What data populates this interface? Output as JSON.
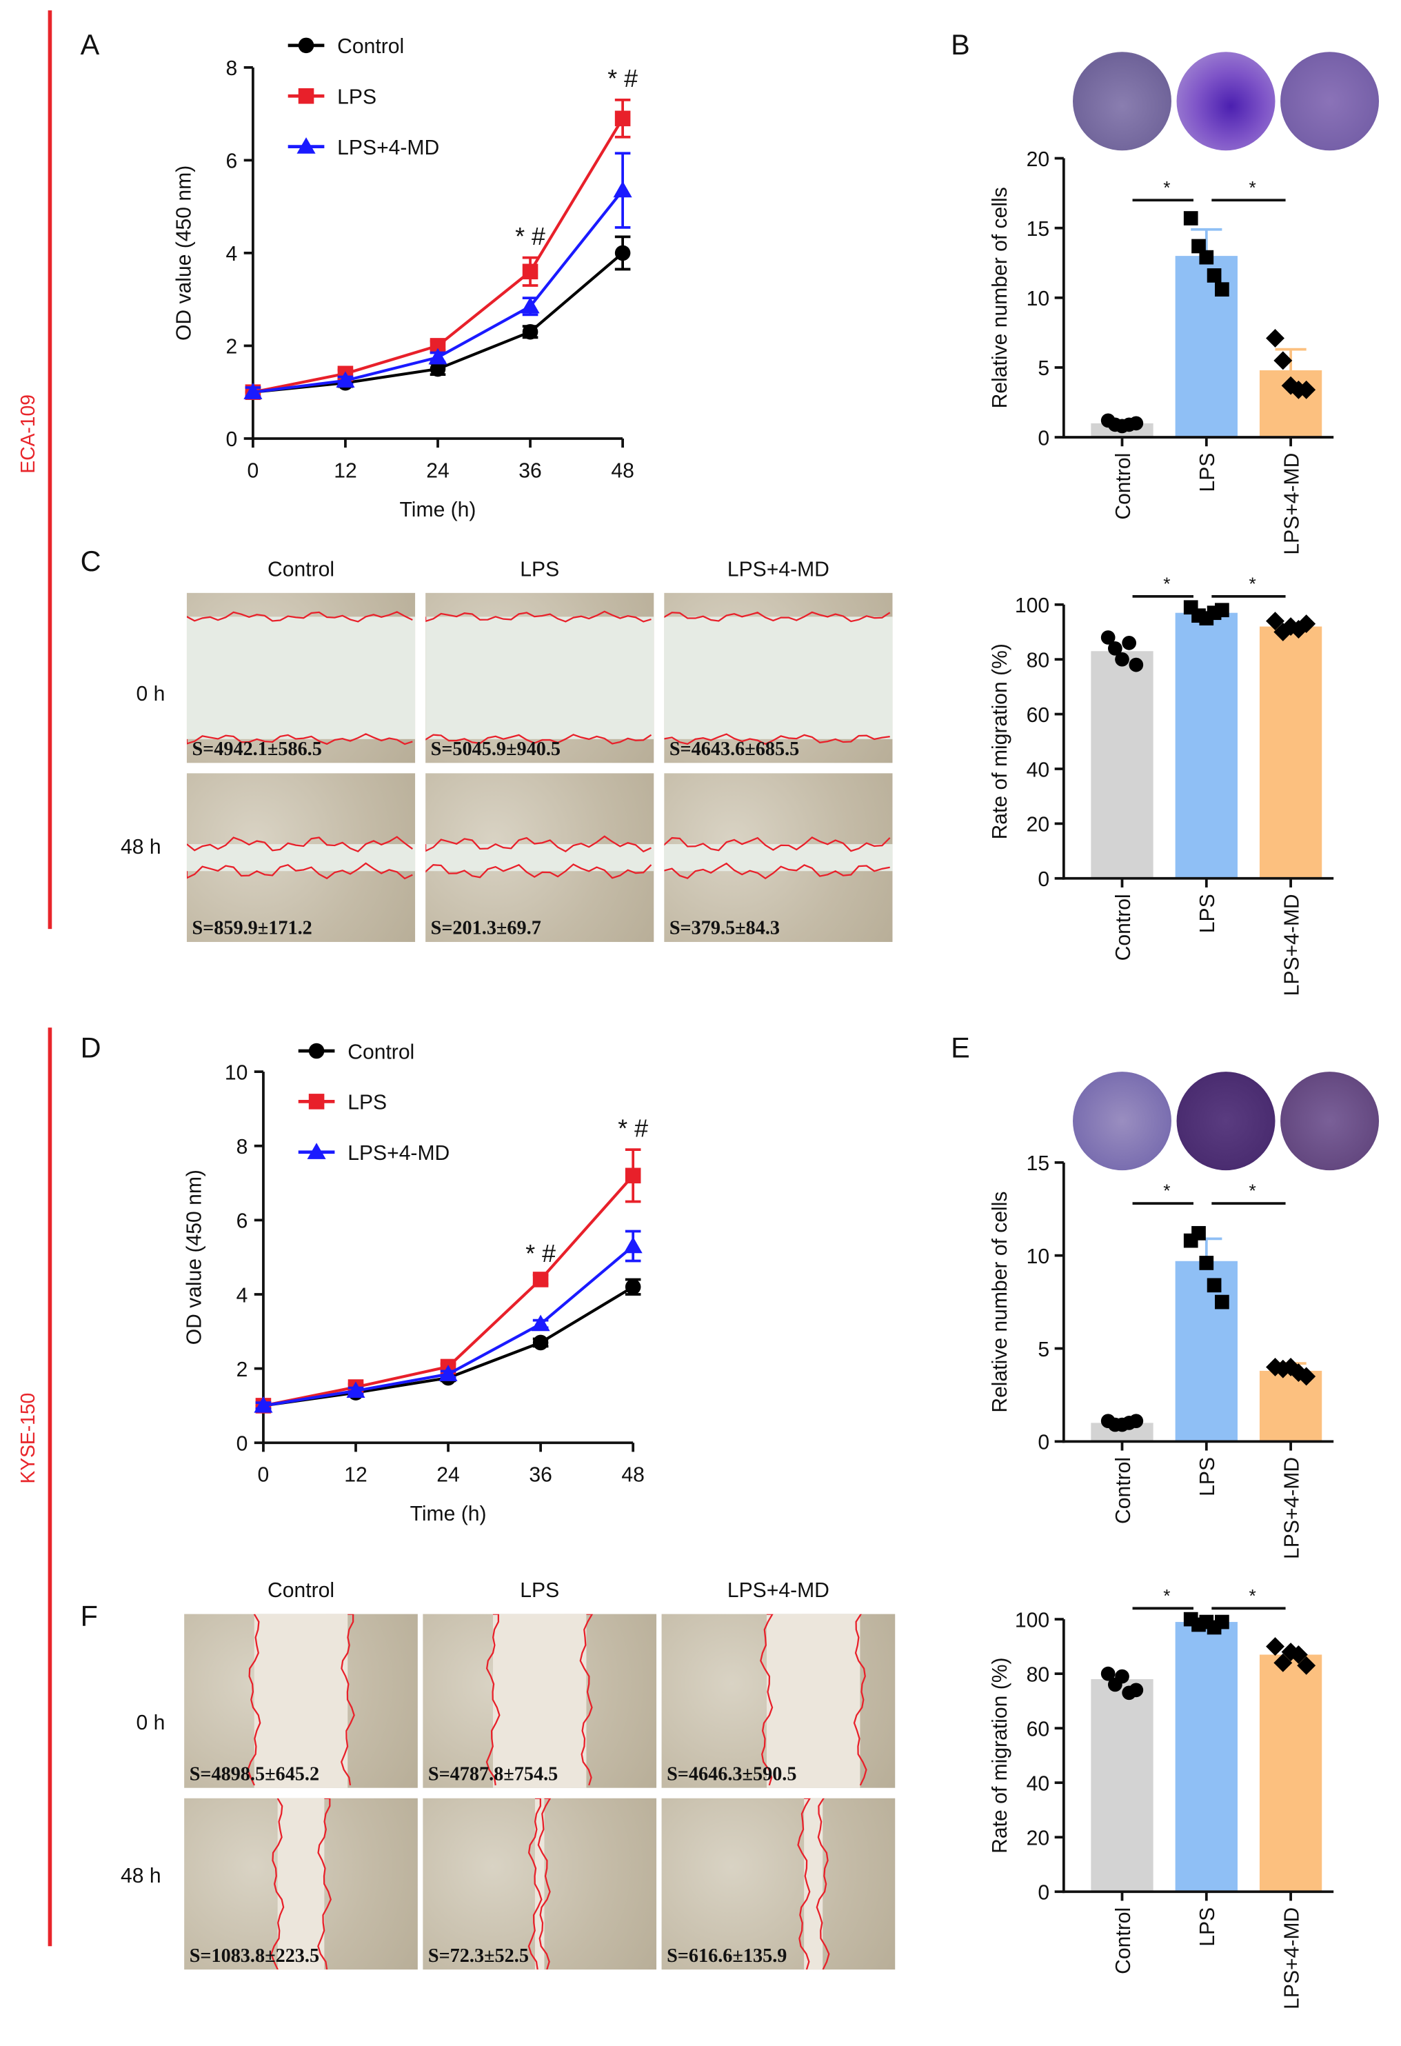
{
  "cell_lines": [
    "ECA-109",
    "KYSE-150"
  ],
  "panel_labels": {
    "A": "A",
    "B": "B",
    "C": "C",
    "D": "D",
    "E": "E",
    "F": "F"
  },
  "scratch": {
    "columns": [
      "Control",
      "LPS",
      "LPS+4-MD"
    ],
    "rows": [
      "0 h",
      "48 h"
    ],
    "C_captions": [
      [
        "S=4942.1±586.5",
        "S=5045.9±940.5",
        "S=4643.6±685.5"
      ],
      [
        "S=859.9±171.2",
        "S=201.3±69.7",
        "S=379.5±84.3"
      ]
    ],
    "F_captions": [
      [
        "S=4898.5±645.2",
        "S=4787.8±754.5",
        "S=4646.3±590.5"
      ],
      [
        "S=1083.8±223.5",
        "S=72.3±52.5",
        "S=616.6±135.9"
      ]
    ]
  },
  "colors": {
    "control": "#000000",
    "lps": "#e8202a",
    "lps4md": "#1a1aff",
    "bar_control": "#d3d3d3",
    "bar_lps": "#8fbff5",
    "bar_lps4md": "#fcc07f",
    "cell_line": "#e8252b"
  },
  "chart_data": [
    {
      "id": "A",
      "type": "line",
      "xlabel": "Time (h)",
      "ylabel": "OD value (450 nm)",
      "x": [
        0,
        12,
        24,
        36,
        48
      ],
      "ylim": [
        0,
        8
      ],
      "yticks": [
        0,
        2,
        4,
        6,
        8
      ],
      "legend": "top-left",
      "series": [
        {
          "name": "Control",
          "marker": "circle",
          "values": [
            1.0,
            1.2,
            1.5,
            2.3,
            4.0
          ],
          "err": [
            0.1,
            0.08,
            0.12,
            0.12,
            0.35
          ]
        },
        {
          "name": "LPS",
          "marker": "square",
          "values": [
            1.0,
            1.4,
            2.0,
            3.6,
            6.9
          ],
          "err": [
            0.1,
            0.08,
            0.1,
            0.3,
            0.4
          ]
        },
        {
          "name": "LPS+4-MD",
          "marker": "triangle",
          "values": [
            1.0,
            1.25,
            1.75,
            2.85,
            5.35
          ],
          "err": [
            0.1,
            0.08,
            0.1,
            0.18,
            0.8
          ]
        }
      ],
      "annotations": [
        {
          "x": 36,
          "text": "* #"
        },
        {
          "x": 48,
          "text": "* #"
        }
      ]
    },
    {
      "id": "B",
      "type": "bar",
      "ylabel": "Relative number of cells",
      "categories": [
        "Control",
        "LPS",
        "LPS+4-MD"
      ],
      "ylim": [
        0,
        20
      ],
      "yticks": [
        0,
        5,
        10,
        15,
        20
      ],
      "values": [
        1.0,
        13.0,
        4.8
      ],
      "err": [
        0.1,
        1.9,
        1.5
      ],
      "points": [
        [
          1.2,
          0.9,
          0.8,
          0.9,
          1.0
        ],
        [
          15.7,
          13.7,
          12.9,
          11.6,
          10.6
        ],
        [
          7.1,
          5.5,
          3.7,
          3.4,
          3.4
        ]
      ],
      "markers": [
        "circle",
        "square",
        "diamond"
      ],
      "significance": [
        {
          "from": 0,
          "to": 1,
          "text": "*"
        },
        {
          "from": 1,
          "to": 2,
          "text": "*"
        }
      ],
      "sig_level": 17
    },
    {
      "id": "C-rate",
      "type": "bar",
      "ylabel": "Rate of migration (%)",
      "categories": [
        "Control",
        "LPS",
        "LPS+4-MD"
      ],
      "ylim": [
        0,
        100
      ],
      "yticks": [
        0,
        20,
        40,
        60,
        80,
        100
      ],
      "values": [
        83,
        97,
        92
      ],
      "err": [
        0,
        0,
        0
      ],
      "points": [
        [
          88,
          84,
          80,
          86,
          78
        ],
        [
          99,
          96,
          95,
          97,
          98
        ],
        [
          94,
          90,
          92,
          91,
          93
        ]
      ],
      "markers": [
        "circle",
        "square",
        "diamond"
      ],
      "significance": [
        {
          "from": 0,
          "to": 1,
          "text": "*"
        },
        {
          "from": 1,
          "to": 2,
          "text": "*"
        }
      ],
      "sig_level": 103
    },
    {
      "id": "D",
      "type": "line",
      "xlabel": "Time (h)",
      "ylabel": "OD value (450 nm)",
      "x": [
        0,
        12,
        24,
        36,
        48
      ],
      "ylim": [
        0,
        10
      ],
      "yticks": [
        0,
        2,
        4,
        6,
        8,
        10
      ],
      "legend": "top-left",
      "series": [
        {
          "name": "Control",
          "marker": "circle",
          "values": [
            1.0,
            1.35,
            1.75,
            2.7,
            4.2
          ],
          "err": [
            0.08,
            0.08,
            0.08,
            0.1,
            0.2
          ]
        },
        {
          "name": "LPS",
          "marker": "square",
          "values": [
            1.0,
            1.5,
            2.05,
            4.4,
            7.2
          ],
          "err": [
            0.08,
            0.08,
            0.08,
            0.12,
            0.7
          ]
        },
        {
          "name": "LPS+4-MD",
          "marker": "triangle",
          "values": [
            1.0,
            1.4,
            1.85,
            3.2,
            5.3
          ],
          "err": [
            0.08,
            0.08,
            0.08,
            0.1,
            0.4
          ]
        }
      ],
      "annotations": [
        {
          "x": 36,
          "text": "* #"
        },
        {
          "x": 48,
          "text": "* #"
        }
      ]
    },
    {
      "id": "E",
      "type": "bar",
      "ylabel": "Relative number of cells",
      "categories": [
        "Control",
        "LPS",
        "LPS+4-MD"
      ],
      "ylim": [
        0,
        15
      ],
      "yticks": [
        0,
        5,
        10,
        15
      ],
      "values": [
        1.0,
        9.7,
        3.8
      ],
      "err": [
        0.1,
        1.2,
        0.4
      ],
      "points": [
        [
          1.1,
          0.9,
          0.9,
          1.0,
          1.1
        ],
        [
          10.8,
          11.2,
          9.6,
          8.4,
          7.5
        ],
        [
          4.0,
          3.9,
          4.0,
          3.7,
          3.5
        ]
      ],
      "markers": [
        "circle",
        "square",
        "diamond"
      ],
      "significance": [
        {
          "from": 0,
          "to": 1,
          "text": "*"
        },
        {
          "from": 1,
          "to": 2,
          "text": "*"
        }
      ],
      "sig_level": 12.8
    },
    {
      "id": "F-rate",
      "type": "bar",
      "ylabel": "Rate of migration (%)",
      "categories": [
        "Control",
        "LPS",
        "LPS+4-MD"
      ],
      "ylim": [
        0,
        100
      ],
      "yticks": [
        0,
        20,
        40,
        60,
        80,
        100
      ],
      "values": [
        78,
        99,
        87
      ],
      "err": [
        0,
        0,
        0
      ],
      "points": [
        [
          80,
          76,
          79,
          73,
          74
        ],
        [
          100,
          98,
          99,
          97,
          99
        ],
        [
          90,
          84,
          88,
          87,
          83
        ]
      ],
      "markers": [
        "circle",
        "square",
        "diamond"
      ],
      "significance": [
        {
          "from": 0,
          "to": 1,
          "text": "*"
        },
        {
          "from": 1,
          "to": 2,
          "text": "*"
        }
      ],
      "sig_level": 104
    }
  ]
}
